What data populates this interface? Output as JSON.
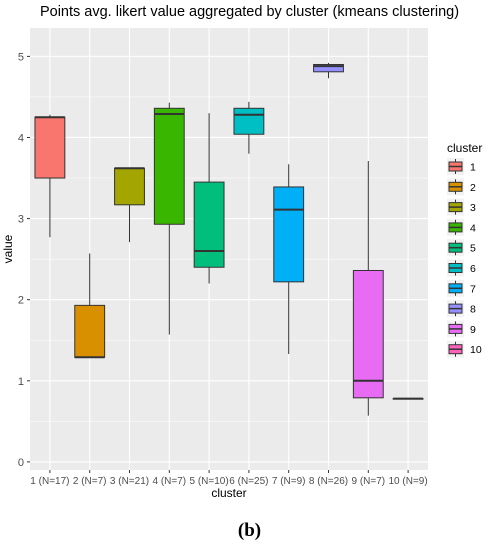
{
  "chart_data": {
    "type": "boxplot",
    "title": "Points avg. likert value aggregated by cluster (kmeans clustering)",
    "xlabel": "cluster",
    "ylabel": "value",
    "ylim": [
      -0.1,
      5.35
    ],
    "yticks": [
      0,
      1,
      2,
      3,
      4,
      5
    ],
    "grid": true,
    "legend": {
      "title": "cluster",
      "position": "right"
    },
    "categories": [
      "1 (N=17)",
      "2 (N=7)",
      "3 (N=21)",
      "4 (N=7)",
      "5 (N=10)",
      "6 (N=25)",
      "7 (N=9)",
      "8 (N=26)",
      "9 (N=7)",
      "10 (N=9)"
    ],
    "series": [
      {
        "name": "1",
        "color": "#F8766D",
        "whisker_low": 2.77,
        "q1": 3.5,
        "median": 4.25,
        "q3": 4.25,
        "whisker_high": 4.28
      },
      {
        "name": "2",
        "color": "#D89000",
        "whisker_low": 1.29,
        "q1": 1.29,
        "median": 1.29,
        "q3": 1.93,
        "whisker_high": 2.57
      },
      {
        "name": "3",
        "color": "#A3A500",
        "whisker_low": 2.71,
        "q1": 3.17,
        "median": 3.62,
        "q3": 3.62,
        "whisker_high": 3.62
      },
      {
        "name": "4",
        "color": "#39B600",
        "whisker_low": 1.57,
        "q1": 2.93,
        "median": 4.29,
        "q3": 4.36,
        "whisker_high": 4.43
      },
      {
        "name": "5",
        "color": "#00BF7D",
        "whisker_low": 2.2,
        "q1": 2.4,
        "median": 2.6,
        "q3": 3.45,
        "whisker_high": 4.3
      },
      {
        "name": "6",
        "color": "#00BFC4",
        "whisker_low": 3.8,
        "q1": 4.04,
        "median": 4.28,
        "q3": 4.36,
        "whisker_high": 4.44
      },
      {
        "name": "7",
        "color": "#00B0F6",
        "whisker_low": 1.33,
        "q1": 2.22,
        "median": 3.11,
        "q3": 3.39,
        "whisker_high": 3.67
      },
      {
        "name": "8",
        "color": "#9590FF",
        "whisker_low": 4.73,
        "q1": 4.81,
        "median": 4.88,
        "q3": 4.9,
        "whisker_high": 4.92
      },
      {
        "name": "9",
        "color": "#E76BF3",
        "whisker_low": 0.57,
        "q1": 0.79,
        "median": 1.0,
        "q3": 2.36,
        "whisker_high": 3.71
      },
      {
        "name": "10",
        "color": "#FF62BC",
        "whisker_low": 0.78,
        "q1": 0.78,
        "median": 0.78,
        "q3": 0.78,
        "whisker_high": 0.78
      }
    ]
  },
  "caption": "(b)"
}
